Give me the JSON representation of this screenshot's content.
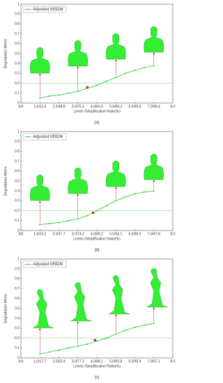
{
  "chart_data": [
    {
      "type": "line",
      "caption": "(a)",
      "xlabel": "Levels /Simplification Ratio(%)",
      "ylabel": "Degradation Metric",
      "xlim": [
        0,
        8
      ],
      "ylim": [
        0,
        1
      ],
      "xticks": [
        {
          "value": 0,
          "label": "0/0"
        },
        {
          "value": 1,
          "label": "1.0/22.5"
        },
        {
          "value": 2,
          "label": "2.0/48.8"
        },
        {
          "value": 3,
          "label": "3.0/75.1"
        },
        {
          "value": 4,
          "label": "4.0/83.6"
        },
        {
          "value": 5,
          "label": "5.0/89.3"
        },
        {
          "value": 6,
          "label": "6.0/95.6"
        },
        {
          "value": 7,
          "label": "7.0/96.4"
        },
        {
          "value": 8,
          "label": "8.0"
        }
      ],
      "yticks": [
        0,
        0.1,
        0.2,
        0.3,
        0.4,
        0.5,
        0.6,
        0.7,
        0.8,
        0.9,
        1
      ],
      "x": [
        1,
        1.5,
        2,
        2.5,
        3,
        3.5,
        4,
        4.5,
        5,
        5.5,
        6,
        6.5,
        7
      ],
      "series": [
        {
          "name": "Adjusted MSDM",
          "color": "#22cc22",
          "values": [
            0.05,
            0.07,
            0.08,
            0.1,
            0.12,
            0.15,
            0.18,
            0.22,
            0.26,
            0.3,
            0.33,
            0.36,
            0.38
          ]
        }
      ],
      "threshold": 0.2,
      "highlight": {
        "x": 3.5,
        "y": 0.16
      }
    },
    {
      "type": "line",
      "caption": "(b)",
      "xlabel": "Levels /Simplification Ratio(%)",
      "ylabel": "Degradation Metric",
      "xlim": [
        0,
        8
      ],
      "ylim": [
        0,
        1
      ],
      "xticks": [
        {
          "value": 0,
          "label": "0/0"
        },
        {
          "value": 1,
          "label": "1.0/23.2"
        },
        {
          "value": 2,
          "label": "2.0/47.7"
        },
        {
          "value": 3,
          "label": "3.0/74.3"
        },
        {
          "value": 4,
          "label": "4.0/89.2"
        },
        {
          "value": 5,
          "label": "5.0/93.1"
        },
        {
          "value": 6,
          "label": "6.0/95.5"
        },
        {
          "value": 7,
          "label": "7.0/97.8"
        },
        {
          "value": 8,
          "label": "8.0"
        }
      ],
      "yticks": [
        0,
        0.1,
        0.2,
        0.3,
        0.4,
        0.5,
        0.6,
        0.7,
        0.8,
        0.9,
        1
      ],
      "x": [
        1,
        1.5,
        2,
        2.5,
        3,
        3.5,
        4,
        4.5,
        5,
        5.5,
        6,
        6.5,
        7
      ],
      "series": [
        {
          "name": "Adjusted MSDM",
          "color": "#22cc22",
          "values": [
            0.06,
            0.07,
            0.08,
            0.1,
            0.12,
            0.15,
            0.2,
            0.25,
            0.3,
            0.34,
            0.37,
            0.39,
            0.4
          ]
        }
      ],
      "threshold": 0.2,
      "highlight": {
        "x": 3.8,
        "y": 0.18
      }
    },
    {
      "type": "line",
      "caption": "(c)",
      "xlabel": "Levels /Simplification Ratio(%)",
      "ylabel": "Degradation Metric",
      "xlim": [
        0,
        8
      ],
      "ylim": [
        0,
        1
      ],
      "xticks": [
        {
          "value": 0,
          "label": "0/0"
        },
        {
          "value": 1,
          "label": "1.0/17.7"
        },
        {
          "value": 2,
          "label": "2.0/53.4"
        },
        {
          "value": 3,
          "label": "3.0/77.1"
        },
        {
          "value": 4,
          "label": "4.0/88.1"
        },
        {
          "value": 5,
          "label": "5.0/92.8"
        },
        {
          "value": 6,
          "label": "6.0/95.4"
        },
        {
          "value": 7,
          "label": "7.0/97.1"
        },
        {
          "value": 8,
          "label": "8.0"
        }
      ],
      "yticks": [
        0,
        0.1,
        0.2,
        0.3,
        0.4,
        0.5,
        0.6,
        0.7,
        0.8,
        0.9,
        1
      ],
      "x": [
        1,
        1.5,
        2,
        2.5,
        3,
        3.5,
        4,
        4.5,
        5,
        5.5,
        6,
        6.5,
        7
      ],
      "series": [
        {
          "name": "Adjusted MSDM",
          "color": "#22cc22",
          "values": [
            0.04,
            0.06,
            0.08,
            0.1,
            0.12,
            0.14,
            0.17,
            0.2,
            0.24,
            0.28,
            0.31,
            0.33,
            0.35
          ]
        }
      ],
      "threshold": 0.2,
      "highlight": {
        "x": 3.9,
        "y": 0.18
      }
    }
  ]
}
